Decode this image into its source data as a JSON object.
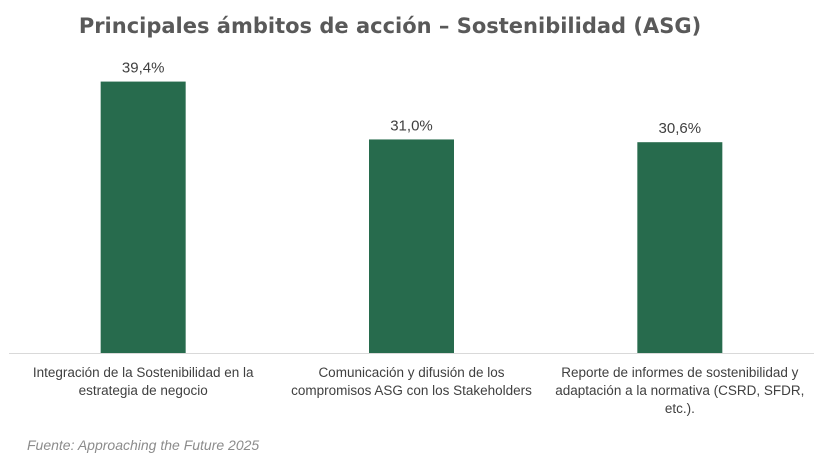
{
  "chart_data": {
    "type": "bar",
    "title": "Principales ámbitos de acción – Sostenibilidad (ASG)",
    "categories": [
      [
        "Integración de la Sostenibilidad en la",
        "estrategia de negocio"
      ],
      [
        "Comunicación y difusión de los",
        "compromisos ASG con los Stakeholders"
      ],
      [
        "Reporte de informes de sostenibilidad y",
        "adaptación a la normativa (CSRD, SFDR,",
        "etc.)."
      ]
    ],
    "values": [
      39.4,
      31.0,
      30.6
    ],
    "data_labels": [
      "39,4%",
      "31,0%",
      "30,6%"
    ],
    "ylim": [
      0,
      45
    ],
    "grid": false,
    "legend": "none",
    "bar_color": "#276b4d",
    "axis_color": "#d9d9d9",
    "text_color": "#404040"
  },
  "source": "Fuente: Approaching the Future 2025"
}
